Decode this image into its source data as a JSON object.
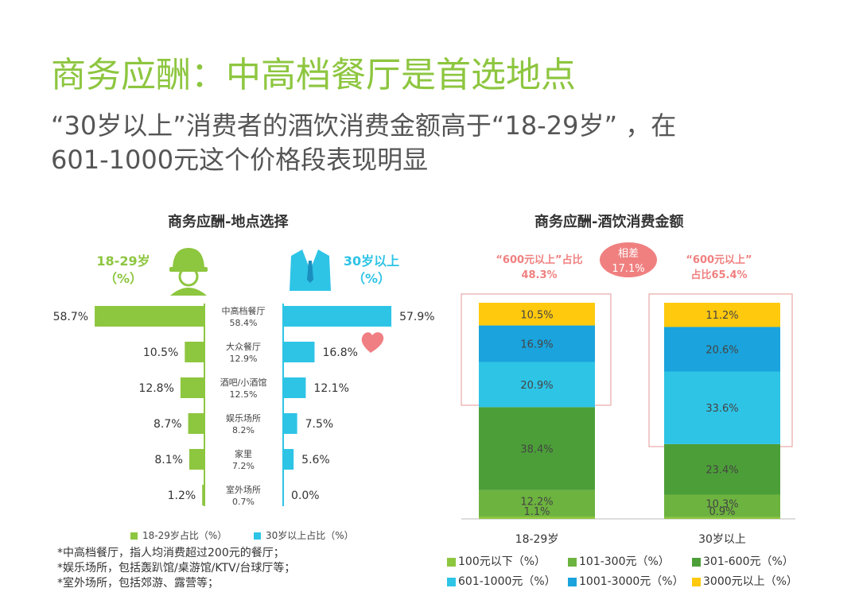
{
  "page": {
    "title": "商务应酬：中高档餐厅是首选地点",
    "subtitle_line1": "“30岁以上”消费者的酒饮消费金额高于“18-29岁” ，在",
    "subtitle_line2": "601-1000元这个价格段表现明显"
  },
  "left_chart": {
    "title": "商务应酬-地点选择",
    "group_left_line1": "18-29岁",
    "group_left_line2": "（%）",
    "group_right_line1": "30岁以上",
    "group_right_line2": "（%）",
    "legend": [
      "18-29岁占比（%）",
      "30岁以上占比（%）"
    ],
    "notes": [
      "*中高档餐厅，指人均消费超过200元的餐厅；",
      "*娱乐场所，包括轰趴馆/桌游馆/KTV/台球厅等；",
      "*室外场所，包括郊游、露营等；"
    ]
  },
  "right_chart": {
    "title": "商务应酬-酒饮消费金额",
    "annotation_left_line1": "“600元以上”占比",
    "annotation_left_line2": "48.3%",
    "annotation_mid_line1": "相差",
    "annotation_mid_line2": "17.1%",
    "annotation_right_line1": "“600元以上”",
    "annotation_right_line2": "占比65.4%"
  },
  "chart_data": [
    {
      "type": "bar",
      "orientation": "horizontal-butterfly",
      "categories": [
        "中高档餐厅",
        "大众餐厅",
        "酒吧/小酒馆",
        "娱乐场所",
        "家里",
        "室外场所"
      ],
      "category_labels": [
        "58.4%",
        "12.9%",
        "12.5%",
        "8.2%",
        "7.2%",
        "0.7%"
      ],
      "series": [
        {
          "name": "18-29岁占比（%）",
          "values": [
            58.7,
            10.5,
            12.8,
            8.7,
            8.1,
            1.2
          ],
          "labels": [
            "58.7%",
            "10.5%",
            "12.8%",
            "8.7%",
            "8.1%",
            "1.2%"
          ],
          "color": "#8dc63f"
        },
        {
          "name": "30岁以上占比（%）",
          "values": [
            57.9,
            16.8,
            12.1,
            7.5,
            5.6,
            0.0
          ],
          "labels": [
            "57.9%",
            "16.8%",
            "12.1%",
            "7.5%",
            "5.6%",
            "0.0%"
          ],
          "color": "#2ec4e6"
        }
      ],
      "legend_position": "bottom"
    },
    {
      "type": "bar",
      "orientation": "vertical-stacked",
      "categories": [
        "18-29岁",
        "30岁以上"
      ],
      "series": [
        {
          "name": "100元以下（%）",
          "values": [
            1.1,
            0.9
          ],
          "labels": [
            "1.1%",
            "0.9%"
          ],
          "color": "#8dc63f"
        },
        {
          "name": "101-300元（%）",
          "values": [
            12.2,
            10.3
          ],
          "labels": [
            "12.2%",
            "10.3%"
          ],
          "color": "#6db33f"
        },
        {
          "name": "301-600元（%）",
          "values": [
            38.4,
            23.4
          ],
          "labels": [
            "38.4%",
            "23.4%"
          ],
          "color": "#4c9f38"
        },
        {
          "name": "601-1000元（%）",
          "values": [
            20.9,
            33.6
          ],
          "labels": [
            "20.9%",
            "33.6%"
          ],
          "color": "#2ec4e6"
        },
        {
          "name": "1001-3000元（%）",
          "values": [
            16.9,
            20.6
          ],
          "labels": [
            "16.9%",
            "20.6%"
          ],
          "color": "#1aa3dc"
        },
        {
          "name": "3000元以上（%）",
          "values": [
            10.5,
            11.2
          ],
          "labels": [
            "10.5%",
            "11.2%"
          ],
          "color": "#ffc90e"
        }
      ],
      "legend_position": "bottom"
    }
  ]
}
